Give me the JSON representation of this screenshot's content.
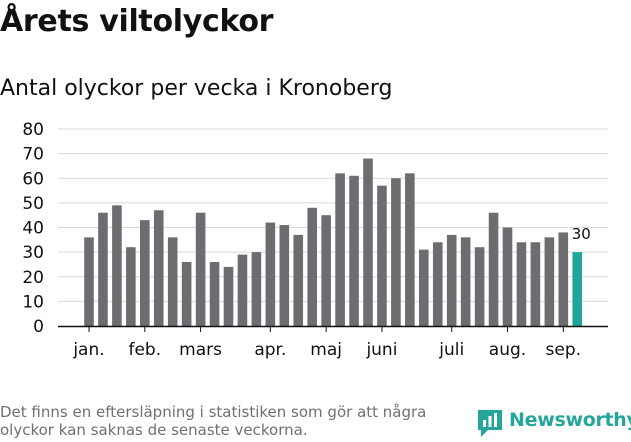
{
  "title": "Årets viltolyckor",
  "subtitle": "Antal olyckor per vecka i Kronoberg",
  "footnote": "Det finns en eftersläpning i statistiken som gör att några olyckor kan saknas de senaste veckorna.",
  "logo": {
    "text": "Newsworthy",
    "icon": "newsworthy-chart-icon",
    "color": "#26a69a"
  },
  "colors": {
    "bar": "#6d6c71",
    "highlight": "#20a79b",
    "grid": "#d9d9d9",
    "axis": "#111111"
  },
  "chart_data": {
    "type": "bar",
    "title": "Antal olyckor per vecka i Kronoberg",
    "xlabel": "",
    "ylabel": "",
    "ylim": [
      0,
      80
    ],
    "yticks": [
      0,
      10,
      20,
      30,
      40,
      50,
      60,
      70,
      80
    ],
    "grid": true,
    "month_labels": [
      {
        "label": "jan.",
        "at_week": 1
      },
      {
        "label": "feb.",
        "at_week": 5
      },
      {
        "label": "mars",
        "at_week": 9
      },
      {
        "label": "apr.",
        "at_week": 14
      },
      {
        "label": "maj",
        "at_week": 18
      },
      {
        "label": "juni",
        "at_week": 22
      },
      {
        "label": "juli",
        "at_week": 27
      },
      {
        "label": "aug.",
        "at_week": 31
      },
      {
        "label": "sep.",
        "at_week": 35
      }
    ],
    "weeks": [
      1,
      2,
      3,
      4,
      5,
      6,
      7,
      8,
      9,
      10,
      11,
      12,
      13,
      14,
      15,
      16,
      17,
      18,
      19,
      20,
      21,
      22,
      23,
      24,
      25,
      26,
      27,
      28,
      29,
      30,
      31,
      32,
      33,
      34,
      35,
      36
    ],
    "values": [
      36,
      46,
      49,
      32,
      43,
      47,
      36,
      26,
      46,
      26,
      24,
      29,
      30,
      42,
      41,
      37,
      48,
      45,
      62,
      61,
      68,
      57,
      60,
      62,
      31,
      34,
      37,
      36,
      32,
      46,
      40,
      34,
      34,
      36,
      38,
      30
    ],
    "highlight_last": true,
    "highlight_label": "30"
  }
}
